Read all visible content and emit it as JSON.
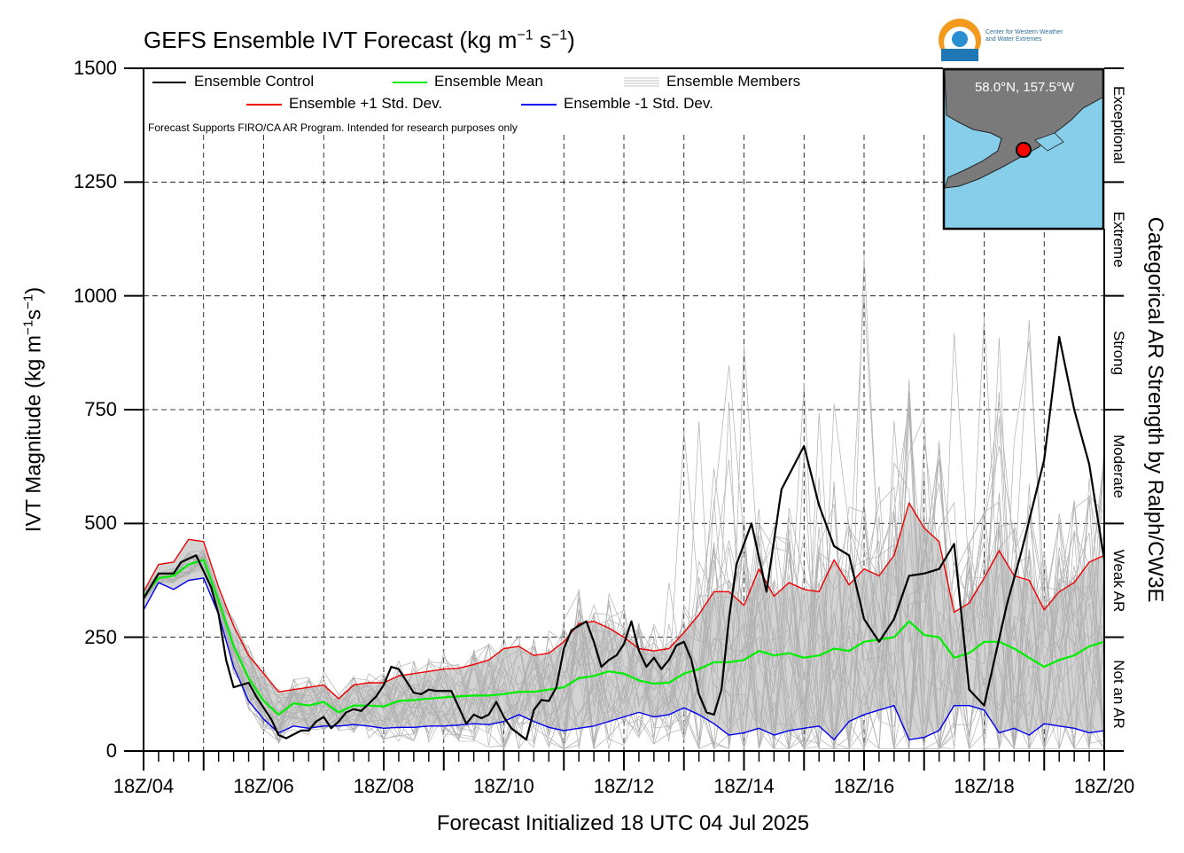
{
  "header": {
    "title": "GEFS Ensemble IVT Forecast (kg m",
    "title_exp1": "−1",
    "title_mid": " s",
    "title_exp2": "−1",
    "title_end": ")",
    "logo_line1": "Center for Western Weather",
    "logo_line2": "and Water Extremes"
  },
  "inset": {
    "location": "58.0°N, 157.5°W"
  },
  "note": "Forecast Supports FIRO/CA AR Program. Intended for research purposes only",
  "colors": {
    "control": "#000000",
    "mean": "#00ee00",
    "plus_sd": "#ee0000",
    "minus_sd": "#0000ee",
    "members": "#b0b0b0",
    "spread": "#d3d3d3",
    "ocean": "#87ceeb",
    "land": "#7a7a7a"
  },
  "chart_data": {
    "type": "line",
    "xlabel": "Forecast Initialized 18 UTC 04 Jul 2025",
    "ylabel_main": "IVT Magnitude (kg m",
    "ylabel_exp1": "−1",
    "ylabel_mid": "s",
    "ylabel_exp2": "−1",
    "ylabel_end": ")",
    "ylabel_right": "Categorical AR Strength by Ralph/CW3E",
    "x_unit": "forecast hours from 18Z/04",
    "xlim": [
      0,
      384
    ],
    "ylim": [
      0,
      1500
    ],
    "y_ticks": [
      0,
      250,
      500,
      750,
      1000,
      1250,
      1500
    ],
    "x_tick_labels": [
      "18Z/04",
      "18Z/06",
      "18Z/08",
      "18Z/10",
      "18Z/12",
      "18Z/14",
      "18Z/16",
      "18Z/18",
      "18Z/20"
    ],
    "x_tick_hours": [
      0,
      48,
      96,
      144,
      192,
      240,
      288,
      336,
      384
    ],
    "categories": [
      {
        "label": "Not an AR",
        "lo": 0,
        "hi": 250
      },
      {
        "label": "Weak AR",
        "lo": 250,
        "hi": 500
      },
      {
        "label": "Moderate",
        "lo": 500,
        "hi": 750
      },
      {
        "label": "Strong",
        "lo": 750,
        "hi": 1000
      },
      {
        "label": "Extreme",
        "lo": 1000,
        "hi": 1250
      },
      {
        "label": "Exceptional",
        "lo": 1250,
        "hi": 1500
      }
    ],
    "grid": true,
    "legend": {
      "control": "Ensemble Control",
      "mean": "Ensemble Mean",
      "members": "Ensemble Members",
      "plus_sd": "Ensemble +1 Std. Dev.",
      "minus_sd": "Ensemble -1 Std. Dev."
    },
    "series": [
      {
        "name": "Ensemble Control",
        "key": "control",
        "points": [
          [
            0,
            335
          ],
          [
            6,
            390
          ],
          [
            12,
            390
          ],
          [
            15,
            415
          ],
          [
            21,
            430
          ],
          [
            27,
            360
          ],
          [
            30,
            300
          ],
          [
            33,
            200
          ],
          [
            36,
            140
          ],
          [
            42,
            150
          ],
          [
            45,
            120
          ],
          [
            51,
            70
          ],
          [
            54,
            35
          ],
          [
            57,
            28
          ],
          [
            63,
            45
          ],
          [
            66,
            45
          ],
          [
            69,
            65
          ],
          [
            72,
            75
          ],
          [
            75,
            50
          ],
          [
            78,
            65
          ],
          [
            81,
            85
          ],
          [
            84,
            92
          ],
          [
            87,
            88
          ],
          [
            93,
            120
          ],
          [
            96,
            145
          ],
          [
            99,
            185
          ],
          [
            102,
            180
          ],
          [
            108,
            128
          ],
          [
            111,
            125
          ],
          [
            114,
            135
          ],
          [
            117,
            132
          ],
          [
            123,
            132
          ],
          [
            129,
            60
          ],
          [
            132,
            80
          ],
          [
            135,
            72
          ],
          [
            138,
            80
          ],
          [
            141,
            108
          ],
          [
            144,
            75
          ],
          [
            147,
            50
          ],
          [
            153,
            25
          ],
          [
            156,
            90
          ],
          [
            159,
            112
          ],
          [
            162,
            110
          ],
          [
            165,
            140
          ],
          [
            168,
            225
          ],
          [
            171,
            265
          ],
          [
            174,
            275
          ],
          [
            177,
            285
          ],
          [
            180,
            240
          ],
          [
            183,
            185
          ],
          [
            186,
            200
          ],
          [
            189,
            210
          ],
          [
            192,
            235
          ],
          [
            195,
            285
          ],
          [
            198,
            220
          ],
          [
            201,
            185
          ],
          [
            204,
            205
          ],
          [
            207,
            180
          ],
          [
            210,
            200
          ],
          [
            213,
            232
          ],
          [
            216,
            240
          ],
          [
            219,
            200
          ],
          [
            222,
            125
          ],
          [
            225,
            85
          ],
          [
            228,
            80
          ],
          [
            231,
            135
          ],
          [
            234,
            290
          ],
          [
            237,
            410
          ],
          [
            243,
            500
          ],
          [
            249,
            350
          ],
          [
            255,
            575
          ],
          [
            264,
            670
          ],
          [
            270,
            540
          ],
          [
            276,
            450
          ],
          [
            282,
            430
          ],
          [
            288,
            290
          ],
          [
            294,
            240
          ],
          [
            300,
            290
          ],
          [
            306,
            385
          ],
          [
            312,
            390
          ],
          [
            318,
            400
          ],
          [
            324,
            455
          ],
          [
            330,
            135
          ],
          [
            336,
            100
          ],
          [
            345,
            320
          ],
          [
            351,
            440
          ],
          [
            360,
            640
          ],
          [
            366,
            910
          ],
          [
            372,
            750
          ],
          [
            378,
            630
          ],
          [
            384,
            420
          ]
        ]
      },
      {
        "name": "Ensemble Mean",
        "key": "mean",
        "points": [
          [
            0,
            340
          ],
          [
            6,
            380
          ],
          [
            12,
            385
          ],
          [
            18,
            410
          ],
          [
            24,
            420
          ],
          [
            30,
            330
          ],
          [
            36,
            230
          ],
          [
            42,
            160
          ],
          [
            48,
            110
          ],
          [
            54,
            80
          ],
          [
            60,
            105
          ],
          [
            66,
            100
          ],
          [
            72,
            108
          ],
          [
            78,
            85
          ],
          [
            84,
            100
          ],
          [
            90,
            100
          ],
          [
            96,
            98
          ],
          [
            102,
            110
          ],
          [
            108,
            112
          ],
          [
            114,
            115
          ],
          [
            120,
            118
          ],
          [
            126,
            120
          ],
          [
            132,
            122
          ],
          [
            138,
            122
          ],
          [
            144,
            125
          ],
          [
            150,
            130
          ],
          [
            156,
            130
          ],
          [
            162,
            135
          ],
          [
            168,
            140
          ],
          [
            174,
            160
          ],
          [
            180,
            165
          ],
          [
            186,
            175
          ],
          [
            192,
            170
          ],
          [
            198,
            155
          ],
          [
            204,
            148
          ],
          [
            210,
            150
          ],
          [
            216,
            170
          ],
          [
            222,
            180
          ],
          [
            228,
            195
          ],
          [
            234,
            195
          ],
          [
            240,
            200
          ],
          [
            246,
            220
          ],
          [
            252,
            210
          ],
          [
            258,
            215
          ],
          [
            264,
            205
          ],
          [
            270,
            210
          ],
          [
            276,
            225
          ],
          [
            282,
            220
          ],
          [
            288,
            240
          ],
          [
            294,
            245
          ],
          [
            300,
            250
          ],
          [
            306,
            285
          ],
          [
            312,
            255
          ],
          [
            318,
            250
          ],
          [
            324,
            205
          ],
          [
            330,
            215
          ],
          [
            336,
            240
          ],
          [
            342,
            240
          ],
          [
            348,
            225
          ],
          [
            354,
            205
          ],
          [
            360,
            185
          ],
          [
            366,
            200
          ],
          [
            372,
            210
          ],
          [
            378,
            230
          ],
          [
            384,
            240
          ]
        ]
      },
      {
        "name": "Ensemble +1 Std. Dev.",
        "key": "plus_sd",
        "points": [
          [
            0,
            350
          ],
          [
            6,
            410
          ],
          [
            12,
            415
          ],
          [
            18,
            465
          ],
          [
            24,
            460
          ],
          [
            30,
            360
          ],
          [
            36,
            275
          ],
          [
            42,
            210
          ],
          [
            48,
            170
          ],
          [
            54,
            130
          ],
          [
            60,
            135
          ],
          [
            66,
            140
          ],
          [
            72,
            145
          ],
          [
            78,
            115
          ],
          [
            84,
            145
          ],
          [
            90,
            150
          ],
          [
            96,
            150
          ],
          [
            102,
            165
          ],
          [
            108,
            170
          ],
          [
            114,
            175
          ],
          [
            120,
            180
          ],
          [
            126,
            182
          ],
          [
            132,
            190
          ],
          [
            138,
            200
          ],
          [
            144,
            225
          ],
          [
            150,
            230
          ],
          [
            156,
            210
          ],
          [
            162,
            215
          ],
          [
            168,
            240
          ],
          [
            174,
            280
          ],
          [
            180,
            285
          ],
          [
            186,
            270
          ],
          [
            192,
            250
          ],
          [
            198,
            225
          ],
          [
            204,
            220
          ],
          [
            210,
            225
          ],
          [
            216,
            260
          ],
          [
            222,
            300
          ],
          [
            228,
            350
          ],
          [
            234,
            350
          ],
          [
            240,
            320
          ],
          [
            246,
            400
          ],
          [
            252,
            340
          ],
          [
            258,
            370
          ],
          [
            264,
            355
          ],
          [
            270,
            350
          ],
          [
            276,
            420
          ],
          [
            282,
            365
          ],
          [
            288,
            400
          ],
          [
            294,
            385
          ],
          [
            300,
            430
          ],
          [
            306,
            545
          ],
          [
            312,
            490
          ],
          [
            318,
            460
          ],
          [
            324,
            305
          ],
          [
            330,
            325
          ],
          [
            336,
            380
          ],
          [
            342,
            440
          ],
          [
            348,
            385
          ],
          [
            354,
            375
          ],
          [
            360,
            310
          ],
          [
            366,
            350
          ],
          [
            372,
            370
          ],
          [
            378,
            415
          ],
          [
            384,
            430
          ]
        ]
      },
      {
        "name": "Ensemble -1 Std. Dev.",
        "key": "minus_sd",
        "points": [
          [
            0,
            310
          ],
          [
            6,
            370
          ],
          [
            12,
            355
          ],
          [
            18,
            375
          ],
          [
            24,
            380
          ],
          [
            30,
            300
          ],
          [
            36,
            185
          ],
          [
            42,
            110
          ],
          [
            48,
            70
          ],
          [
            54,
            40
          ],
          [
            60,
            55
          ],
          [
            66,
            50
          ],
          [
            72,
            55
          ],
          [
            78,
            55
          ],
          [
            84,
            58
          ],
          [
            90,
            55
          ],
          [
            96,
            50
          ],
          [
            102,
            52
          ],
          [
            108,
            52
          ],
          [
            114,
            55
          ],
          [
            120,
            55
          ],
          [
            126,
            57
          ],
          [
            132,
            60
          ],
          [
            138,
            58
          ],
          [
            144,
            65
          ],
          [
            150,
            80
          ],
          [
            156,
            65
          ],
          [
            162,
            52
          ],
          [
            168,
            45
          ],
          [
            174,
            50
          ],
          [
            180,
            55
          ],
          [
            186,
            65
          ],
          [
            192,
            75
          ],
          [
            198,
            85
          ],
          [
            204,
            75
          ],
          [
            210,
            80
          ],
          [
            216,
            95
          ],
          [
            222,
            80
          ],
          [
            228,
            60
          ],
          [
            234,
            35
          ],
          [
            240,
            40
          ],
          [
            246,
            50
          ],
          [
            252,
            35
          ],
          [
            258,
            45
          ],
          [
            264,
            50
          ],
          [
            270,
            55
          ],
          [
            276,
            25
          ],
          [
            282,
            65
          ],
          [
            288,
            80
          ],
          [
            294,
            90
          ],
          [
            300,
            100
          ],
          [
            306,
            25
          ],
          [
            312,
            30
          ],
          [
            318,
            45
          ],
          [
            324,
            100
          ],
          [
            330,
            100
          ],
          [
            336,
            90
          ],
          [
            342,
            40
          ],
          [
            348,
            50
          ],
          [
            354,
            35
          ],
          [
            360,
            60
          ],
          [
            366,
            55
          ],
          [
            372,
            50
          ],
          [
            378,
            40
          ],
          [
            384,
            45
          ]
        ]
      }
    ]
  }
}
